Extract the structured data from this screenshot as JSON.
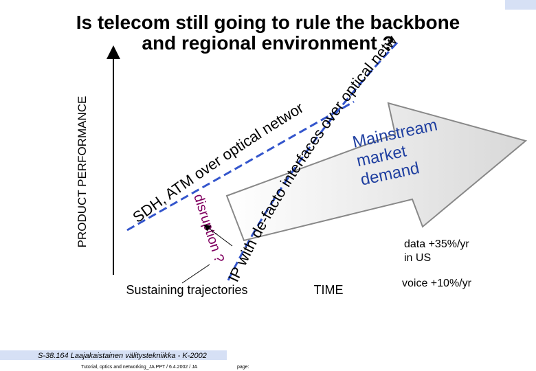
{
  "title": [
    "Is telecom still going to rule the backbone",
    "and regional environment ?"
  ],
  "y_axis_label": "PRODUCT PERFORMANCE",
  "x_axis_label": "TIME",
  "curve_labels": [
    "SDH, ATM over optical network",
    "IP with de-facto interfaces over optical network"
  ],
  "disruption": "disruption ?",
  "sustaining": "Sustaining trajectories",
  "arrow_label": [
    "Mainstream",
    "market",
    "demand"
  ],
  "notes": [
    [
      "data +35%/yr",
      "in US"
    ],
    [
      "voice +10%/yr"
    ]
  ],
  "footer": {
    "course": "S-38.164 Laajakaistainen välitystekniikka - K-2002",
    "file": "Tutorial, optics and networking_JA.PPT / 6.4.2002 / JA",
    "page": "page:"
  }
}
